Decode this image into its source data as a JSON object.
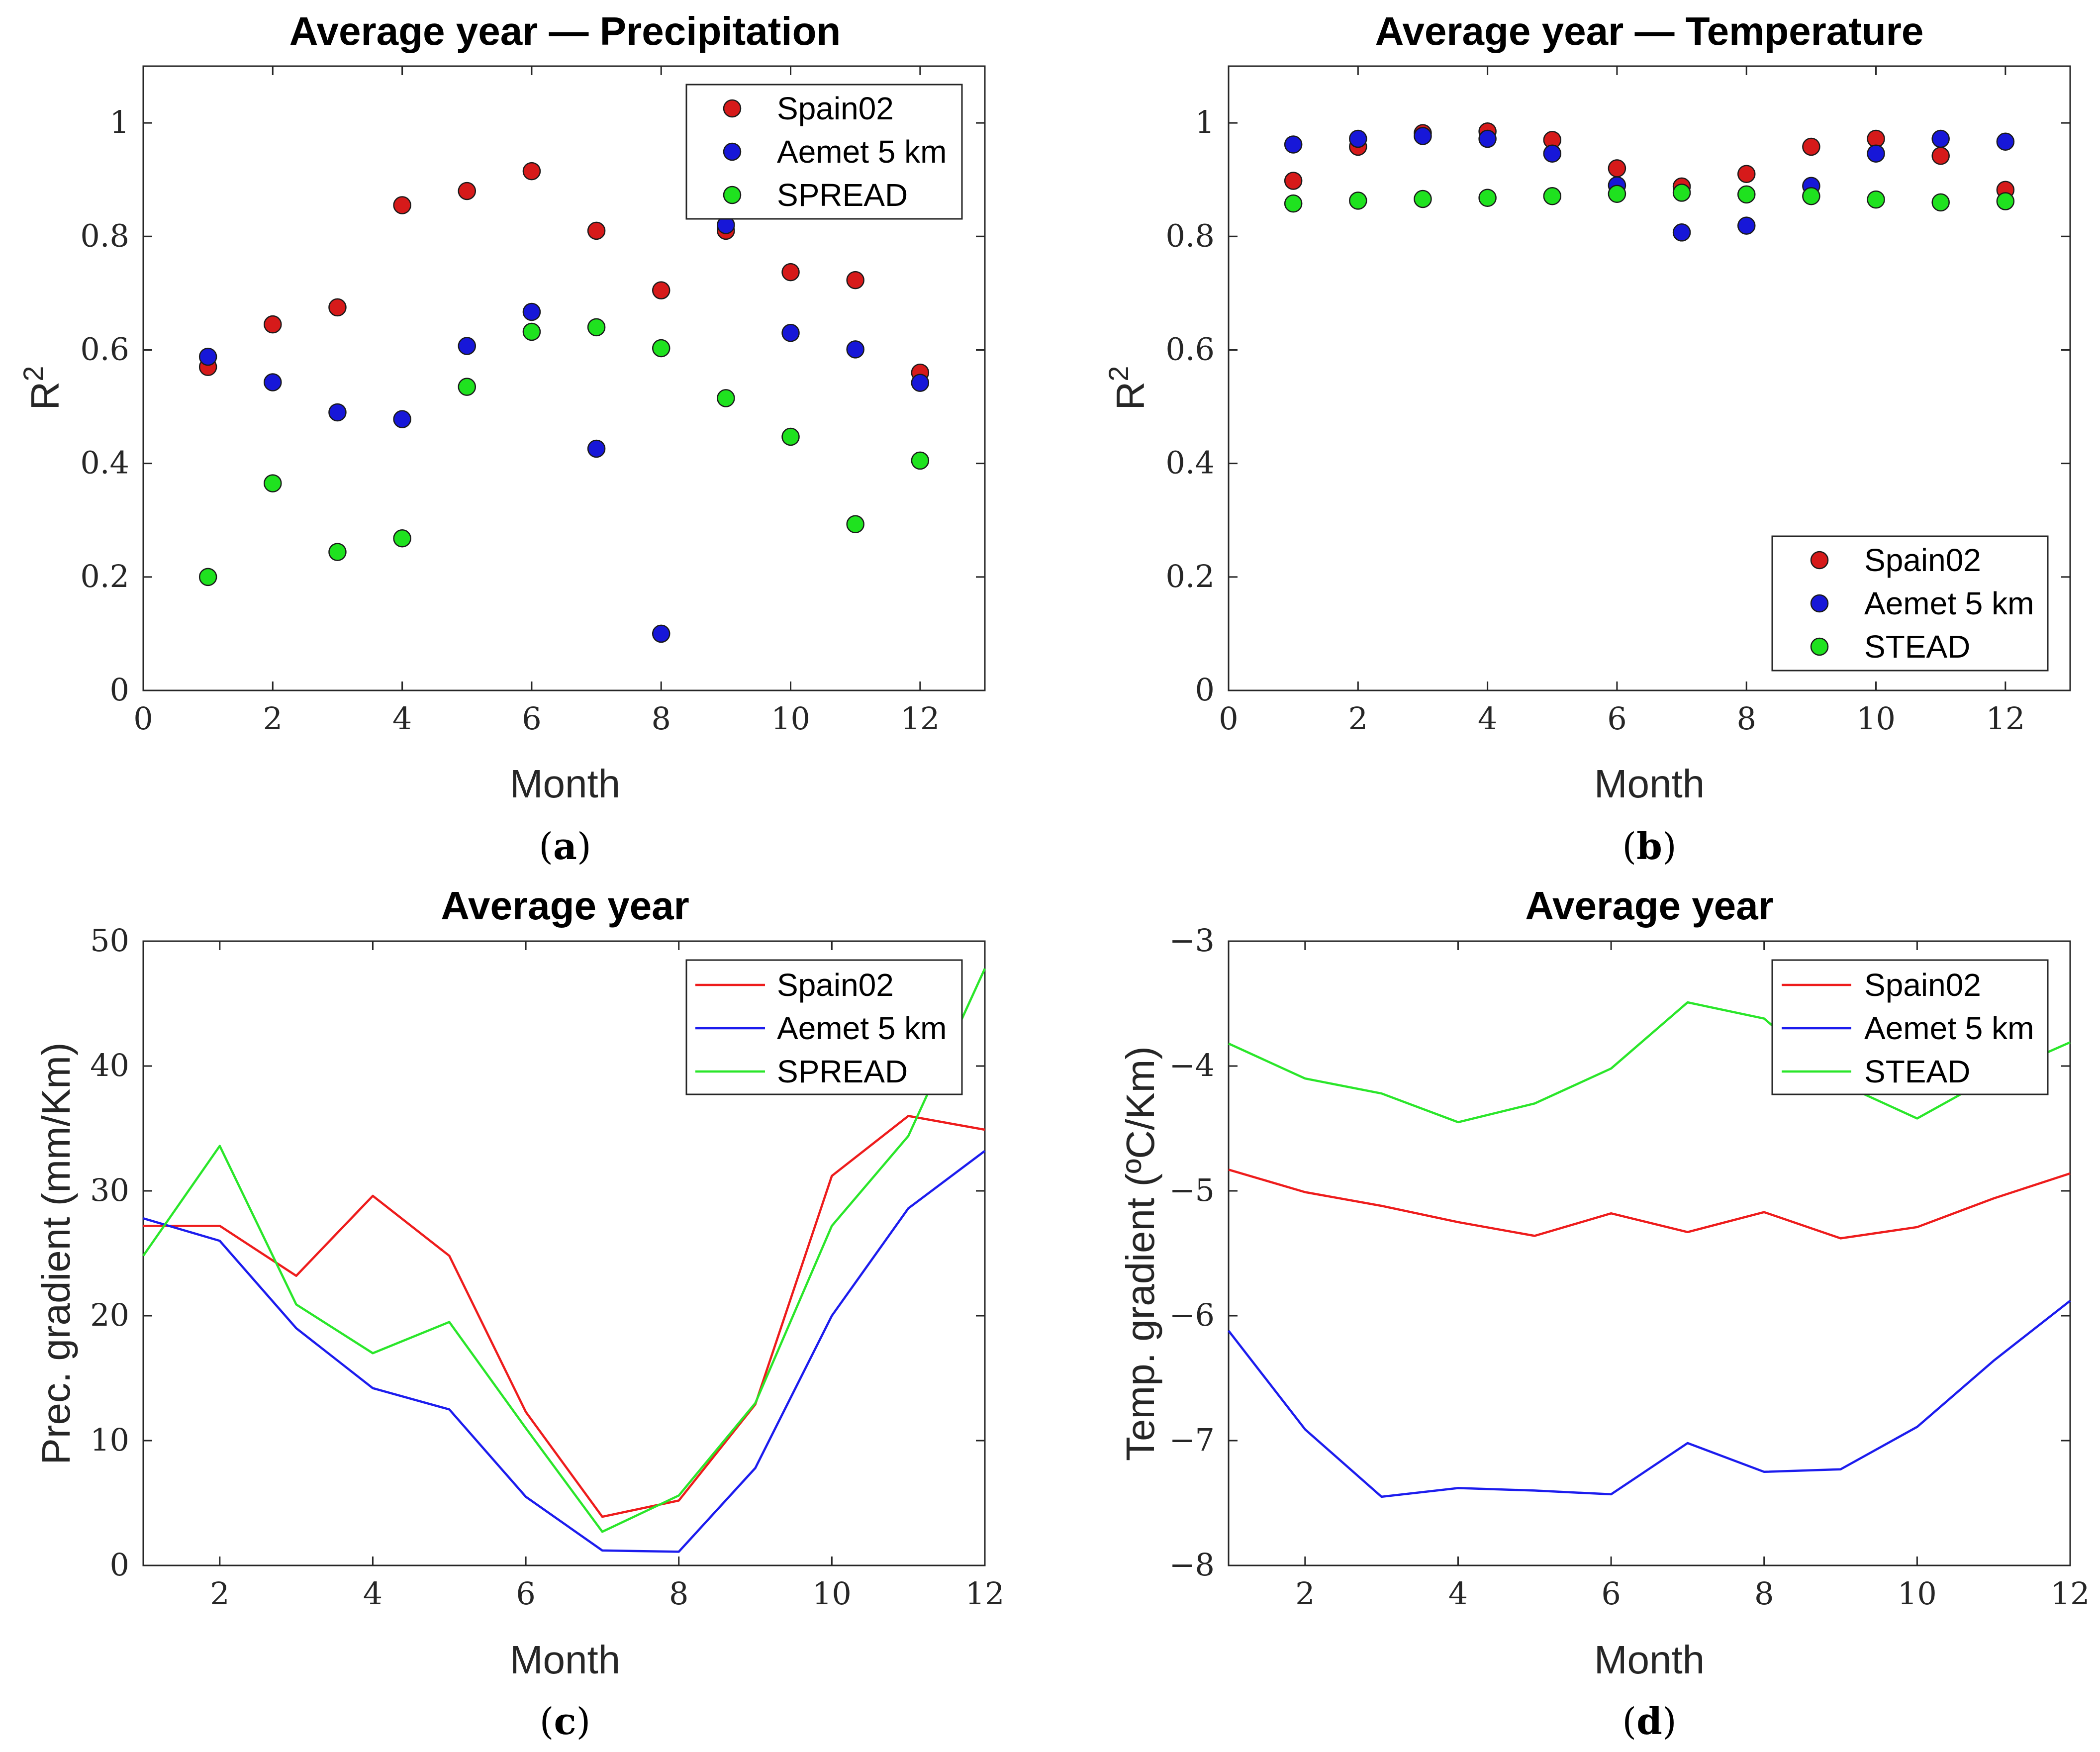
{
  "chart_data": [
    {
      "id": "a",
      "type": "scatter",
      "title": "Average year — Precipitation",
      "xlabel": "Month",
      "ylabel": "R",
      "ylabel_sup": "2",
      "panel_label_prefix": "(",
      "panel_label_letter": "a",
      "panel_label_suffix": ")",
      "xlim": [
        0,
        13
      ],
      "ylim": [
        0,
        1.1
      ],
      "xticks": [
        0,
        2,
        4,
        6,
        8,
        10,
        12
      ],
      "xtick_labels": [
        "0",
        "2",
        "4",
        "6",
        "8",
        "10",
        "12"
      ],
      "yticks": [
        0,
        0.2,
        0.4,
        0.6,
        0.8,
        1
      ],
      "ytick_labels": [
        "0",
        "0.2",
        "0.4",
        "0.6",
        "0.8",
        "1"
      ],
      "legend_position": "top-right",
      "x": [
        1,
        2,
        3,
        4,
        5,
        6,
        7,
        8,
        9,
        10,
        11,
        12
      ],
      "series": [
        {
          "name": "Spain02",
          "color": "#d61a1a",
          "values": [
            0.57,
            0.645,
            0.675,
            0.855,
            0.88,
            0.915,
            0.81,
            0.705,
            0.81,
            0.737,
            0.723,
            0.56
          ]
        },
        {
          "name": "Aemet 5 km",
          "color": "#1717d8",
          "values": [
            0.588,
            0.543,
            0.49,
            0.478,
            0.607,
            0.667,
            0.426,
            0.1,
            0.82,
            0.63,
            0.601,
            0.542
          ]
        },
        {
          "name": "SPREAD",
          "color": "#1fe21f",
          "values": [
            0.2,
            0.365,
            0.244,
            0.268,
            0.535,
            0.632,
            0.64,
            0.603,
            0.515,
            0.447,
            0.293,
            0.405
          ]
        }
      ]
    },
    {
      "id": "b",
      "type": "scatter",
      "title": "Average year — Temperature",
      "xlabel": "Month",
      "ylabel": "R",
      "ylabel_sup": "2",
      "panel_label_prefix": "(",
      "panel_label_letter": "b",
      "panel_label_suffix": ")",
      "xlim": [
        0,
        13
      ],
      "ylim": [
        0,
        1.1
      ],
      "xticks": [
        0,
        2,
        4,
        6,
        8,
        10,
        12
      ],
      "xtick_labels": [
        "0",
        "2",
        "4",
        "6",
        "8",
        "10",
        "12"
      ],
      "yticks": [
        0,
        0.2,
        0.4,
        0.6,
        0.8,
        1
      ],
      "ytick_labels": [
        "0",
        "0.2",
        "0.4",
        "0.6",
        "0.8",
        "1"
      ],
      "legend_position": "bottom-right",
      "x": [
        1,
        2,
        3,
        4,
        5,
        6,
        7,
        8,
        9,
        10,
        11,
        12
      ],
      "series": [
        {
          "name": "Spain02",
          "color": "#d61a1a",
          "values": [
            0.898,
            0.958,
            0.982,
            0.985,
            0.97,
            0.92,
            0.888,
            0.91,
            0.958,
            0.972,
            0.942,
            0.882
          ]
        },
        {
          "name": "Aemet 5 km",
          "color": "#1717d8",
          "values": [
            0.962,
            0.972,
            0.977,
            0.972,
            0.946,
            0.89,
            0.807,
            0.819,
            0.889,
            0.946,
            0.972,
            0.967
          ]
        },
        {
          "name": "STEAD",
          "color": "#1fe21f",
          "values": [
            0.858,
            0.863,
            0.866,
            0.868,
            0.871,
            0.875,
            0.877,
            0.874,
            0.871,
            0.865,
            0.86,
            0.862
          ]
        }
      ]
    },
    {
      "id": "c",
      "type": "line",
      "title": "Average year",
      "xlabel": "Month",
      "ylabel": "Prec. gradient (mm/Km)",
      "ylabel_sup": "",
      "panel_label_prefix": "(",
      "panel_label_letter": "c",
      "panel_label_suffix": ")",
      "xlim": [
        1,
        12
      ],
      "ylim": [
        0,
        50
      ],
      "xticks": [
        2,
        4,
        6,
        8,
        10,
        12
      ],
      "xtick_labels": [
        "2",
        "4",
        "6",
        "8",
        "10",
        "12"
      ],
      "yticks": [
        0,
        10,
        20,
        30,
        40,
        50
      ],
      "ytick_labels": [
        "0",
        "10",
        "20",
        "30",
        "40",
        "50"
      ],
      "legend_position": "top-right",
      "x": [
        1,
        2,
        3,
        4,
        5,
        6,
        7,
        8,
        9,
        10,
        11,
        12
      ],
      "series": [
        {
          "name": "Spain02",
          "color": "#ee1c1c",
          "values": [
            27.2,
            27.2,
            23.2,
            29.6,
            24.8,
            12.3,
            3.9,
            5.2,
            12.9,
            31.2,
            36.0,
            34.9
          ]
        },
        {
          "name": "Aemet 5 km",
          "color": "#1c1cee",
          "values": [
            27.8,
            26.0,
            19.0,
            14.2,
            12.5,
            5.5,
            1.2,
            1.1,
            7.8,
            20.0,
            28.6,
            33.2
          ]
        },
        {
          "name": "SPREAD",
          "color": "#2ae62a",
          "values": [
            24.8,
            33.6,
            20.9,
            17.0,
            19.5,
            11.0,
            2.7,
            5.6,
            13.0,
            27.2,
            34.4,
            47.8
          ]
        }
      ]
    },
    {
      "id": "d",
      "type": "line",
      "title": "Average year",
      "xlabel": "Month",
      "ylabel": "Temp. gradient (ºC/Km)",
      "ylabel_sup": "",
      "panel_label_prefix": "(",
      "panel_label_letter": "d",
      "panel_label_suffix": ")",
      "xlim": [
        1,
        12
      ],
      "ylim": [
        -8,
        -3
      ],
      "xticks": [
        2,
        4,
        6,
        8,
        10,
        12
      ],
      "xtick_labels": [
        "2",
        "4",
        "6",
        "8",
        "10",
        "12"
      ],
      "yticks": [
        -8,
        -7,
        -6,
        -5,
        -4,
        -3
      ],
      "ytick_labels": [
        "−8",
        "−7",
        "−6",
        "−5",
        "−4",
        "−3"
      ],
      "legend_position": "top-right",
      "x": [
        1,
        2,
        3,
        4,
        5,
        6,
        7,
        8,
        9,
        10,
        11,
        12
      ],
      "series": [
        {
          "name": "Spain02",
          "color": "#ee1c1c",
          "values": [
            -4.83,
            -5.01,
            -5.12,
            -5.25,
            -5.36,
            -5.18,
            -5.33,
            -5.17,
            -5.38,
            -5.29,
            -5.06,
            -4.86
          ]
        },
        {
          "name": "Aemet 5 km",
          "color": "#1c1cee",
          "values": [
            -6.12,
            -6.91,
            -7.45,
            -7.38,
            -7.4,
            -7.43,
            -7.02,
            -7.25,
            -7.23,
            -6.89,
            -6.36,
            -5.88
          ]
        },
        {
          "name": "STEAD",
          "color": "#2ae62a",
          "values": [
            -3.82,
            -4.1,
            -4.22,
            -4.45,
            -4.3,
            -4.02,
            -3.49,
            -3.62,
            -4.14,
            -4.42,
            -4.08,
            -3.81
          ]
        }
      ]
    }
  ]
}
